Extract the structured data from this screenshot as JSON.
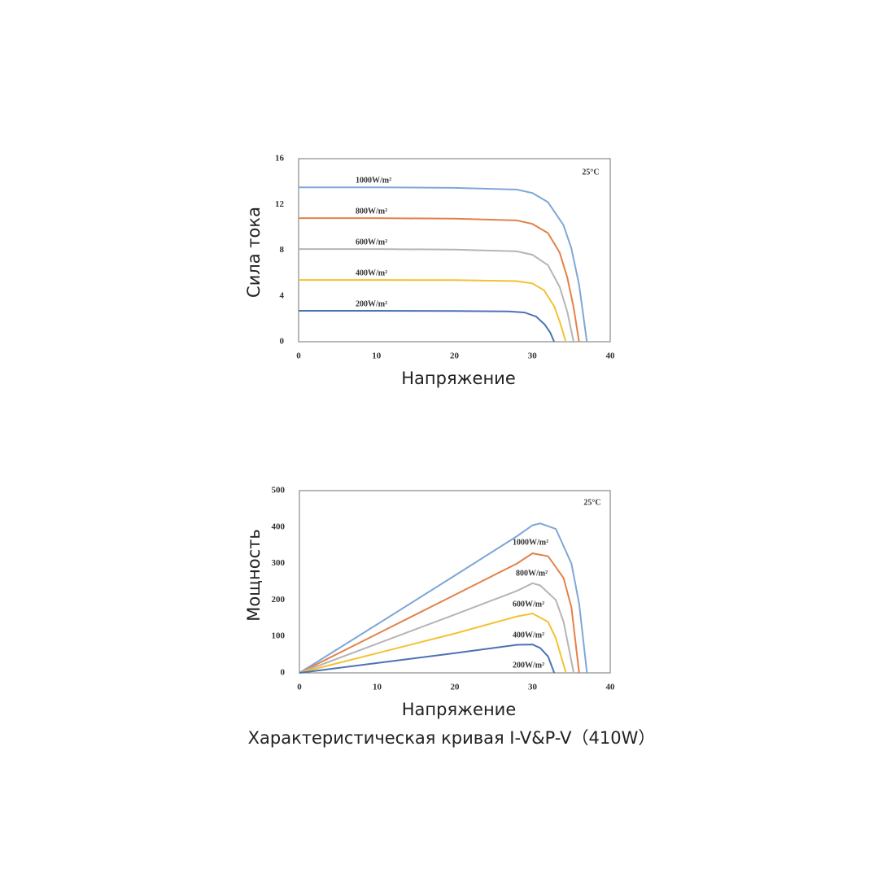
{
  "chart_data": [
    {
      "type": "line",
      "x_label": "Напряжение",
      "y_label": "Сила тока",
      "annotation": "25°C",
      "xlim": [
        0,
        40
      ],
      "xticks": [
        0,
        10,
        20,
        30,
        40
      ],
      "ylim": [
        0,
        16
      ],
      "yticks": [
        0,
        4,
        8,
        12,
        16
      ],
      "grid": false,
      "series": [
        {
          "name": "1000W/m²",
          "color": "#7fa7d6",
          "x": [
            0,
            10,
            20,
            28,
            30,
            32,
            34,
            35,
            36,
            37
          ],
          "values": [
            13.5,
            13.5,
            13.45,
            13.3,
            13.0,
            12.2,
            10.2,
            8.2,
            5.0,
            0
          ]
        },
        {
          "name": "800W/m²",
          "color": "#e2824a",
          "x": [
            0,
            10,
            20,
            28,
            30,
            32,
            33.5,
            34.5,
            35.3,
            36
          ],
          "values": [
            10.8,
            10.8,
            10.75,
            10.6,
            10.3,
            9.5,
            7.8,
            5.6,
            3.0,
            0
          ]
        },
        {
          "name": "600W/m²",
          "color": "#b5b5b5",
          "x": [
            0,
            10,
            20,
            28,
            30,
            32,
            33.5,
            34.5,
            35.3
          ],
          "values": [
            8.1,
            8.1,
            8.05,
            7.9,
            7.6,
            6.7,
            4.8,
            2.6,
            0
          ]
        },
        {
          "name": "400W/m²",
          "color": "#f2c232",
          "x": [
            0,
            10,
            20,
            28,
            30,
            31.5,
            32.8,
            33.6,
            34.3
          ],
          "values": [
            5.4,
            5.4,
            5.38,
            5.3,
            5.1,
            4.5,
            3.1,
            1.6,
            0
          ]
        },
        {
          "name": "200W/m²",
          "color": "#4c72b6",
          "x": [
            0,
            10,
            20,
            27,
            29,
            30.5,
            31.6,
            32.3,
            32.8
          ],
          "values": [
            2.7,
            2.7,
            2.69,
            2.65,
            2.55,
            2.2,
            1.5,
            0.8,
            0
          ]
        }
      ]
    },
    {
      "type": "line",
      "x_label": "Напряжение",
      "y_label": "Мощность",
      "annotation": "25°C",
      "xlim": [
        0,
        40
      ],
      "xticks": [
        0,
        10,
        20,
        30,
        40
      ],
      "ylim": [
        0,
        500
      ],
      "yticks": [
        0,
        100,
        200,
        300,
        400,
        500
      ],
      "grid": false,
      "series": [
        {
          "name": "1000W/m²",
          "color": "#7fa7d6",
          "x": [
            0,
            10,
            20,
            28,
            30,
            31,
            33,
            35,
            36,
            37
          ],
          "values": [
            0,
            133,
            267,
            375,
            405,
            410,
            395,
            300,
            190,
            0
          ]
        },
        {
          "name": "800W/m²",
          "color": "#e2824a",
          "x": [
            0,
            10,
            20,
            28,
            30,
            32,
            34,
            35,
            36
          ],
          "values": [
            0,
            107,
            214,
            300,
            328,
            320,
            260,
            180,
            0
          ]
        },
        {
          "name": "600W/m²",
          "color": "#b5b5b5",
          "x": [
            0,
            10,
            20,
            28,
            30,
            31,
            33,
            34,
            35.3
          ],
          "values": [
            0,
            80,
            160,
            225,
            246,
            240,
            200,
            140,
            0
          ]
        },
        {
          "name": "400W/m²",
          "color": "#f2c232",
          "x": [
            0,
            10,
            20,
            28,
            30,
            32,
            33,
            34.3
          ],
          "values": [
            0,
            54,
            108,
            155,
            163,
            140,
            95,
            0
          ]
        },
        {
          "name": "200W/m²",
          "color": "#4c72b6",
          "x": [
            0,
            10,
            20,
            28,
            30,
            31,
            32,
            32.8
          ],
          "values": [
            0,
            27,
            54,
            77,
            78,
            68,
            45,
            0
          ]
        }
      ]
    }
  ],
  "caption": "Характеристическая кривая  I-V&P-V（410W）"
}
